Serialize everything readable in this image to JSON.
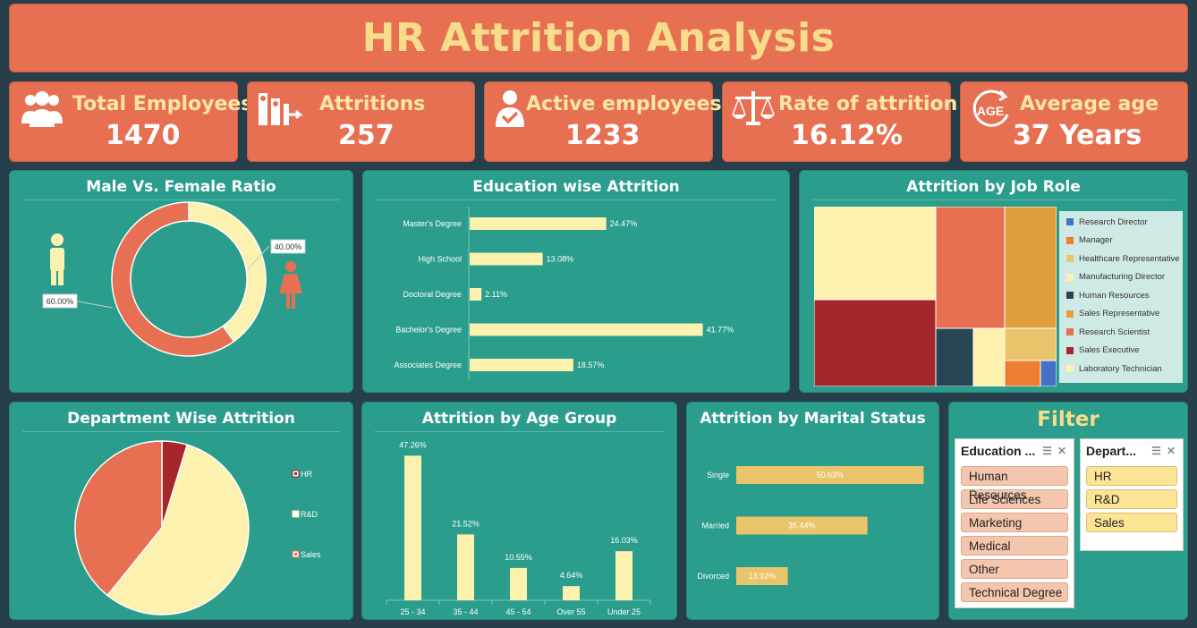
{
  "title": "HR Attrition Analysis",
  "kpis": [
    {
      "label": "Total Employees",
      "value": "1470",
      "icon": "people-icon"
    },
    {
      "label": "Attritions",
      "value": "257",
      "icon": "people-exit-icon"
    },
    {
      "label": "Active employees",
      "value": "1233",
      "icon": "user-check-icon"
    },
    {
      "label": "Rate of attrition",
      "value": "16.12%",
      "icon": "scale-icon"
    },
    {
      "label": "Average age",
      "value": "37 Years",
      "icon": "age-icon"
    }
  ],
  "gender": {
    "title": "Male Vs. Female Ratio",
    "chart_data": {
      "type": "pie",
      "categories": [
        "Male",
        "Female"
      ],
      "values": [
        60.0,
        40.0
      ],
      "labels": [
        "60.00%",
        "40.00%"
      ],
      "colors": [
        "#e77053",
        "#fdf1b0"
      ]
    }
  },
  "education": {
    "title": "Education wise Attrition",
    "chart_data": {
      "type": "bar",
      "orientation": "horizontal",
      "categories": [
        "Master's Degree",
        "High School",
        "Doctoral Degree",
        "Bachelor's Degree",
        "Associates Degree"
      ],
      "values": [
        24.47,
        13.08,
        2.11,
        41.77,
        18.57
      ],
      "labels": [
        "24.47%",
        "13.08%",
        "2.11%",
        "41.77%",
        "18.57%"
      ],
      "xlim": [
        0,
        42
      ],
      "color": "#fdf1b0"
    }
  },
  "jobrole": {
    "title": "Attrition by Job Role",
    "legend": [
      {
        "name": "Research Director",
        "color": "#4472c4"
      },
      {
        "name": "Manager",
        "color": "#ed7d31"
      },
      {
        "name": "Healthcare Representative",
        "color": "#e9c46a"
      },
      {
        "name": "Manufacturing Director",
        "color": "#fdf1b0"
      },
      {
        "name": "Human Resources",
        "color": "#264653"
      },
      {
        "name": "Sales Representative",
        "color": "#e09f3e"
      },
      {
        "name": "Research Scientist",
        "color": "#e76f51"
      },
      {
        "name": "Sales Executive",
        "color": "#a4282b"
      },
      {
        "name": "Laboratory Technician",
        "color": "#fdf1b0"
      }
    ]
  },
  "department": {
    "title": "Department Wise Attrition",
    "chart_data": {
      "type": "pie",
      "categories": [
        "HR",
        "R&D",
        "Sales"
      ],
      "values": [
        4.7,
        56.1,
        39.2
      ],
      "colors": [
        "#a4282b",
        "#fdf1b0",
        "#e77053"
      ]
    }
  },
  "age": {
    "title": "Attrition by Age Group",
    "chart_data": {
      "type": "bar",
      "categories": [
        "25 - 34",
        "35 - 44",
        "45 - 54",
        "Over 55",
        "Under 25"
      ],
      "values": [
        47.26,
        21.52,
        10.55,
        4.64,
        16.03
      ],
      "labels": [
        "47.26%",
        "21.52%",
        "10.55%",
        "4.64%",
        "16.03%"
      ],
      "ylim": [
        0,
        50
      ],
      "color": "#fdf1b0"
    }
  },
  "marital": {
    "title": "Attrition by Marital Status",
    "chart_data": {
      "type": "bar",
      "orientation": "horizontal",
      "categories": [
        "Single",
        "Married",
        "Divorced"
      ],
      "values": [
        50.63,
        35.44,
        13.92
      ],
      "labels": [
        "50.63%",
        "35.44%",
        "13.92%"
      ],
      "xlim": [
        0,
        51
      ],
      "color": "#e9c46a"
    }
  },
  "filter": {
    "title": "Filter",
    "education": {
      "header": "Education ...",
      "items": [
        "Human Resources",
        "Life Sciences",
        "Marketing",
        "Medical",
        "Other",
        "Technical Degree"
      ]
    },
    "department": {
      "header": "Depart...",
      "items": [
        "HR",
        "R&D",
        "Sales"
      ]
    }
  }
}
